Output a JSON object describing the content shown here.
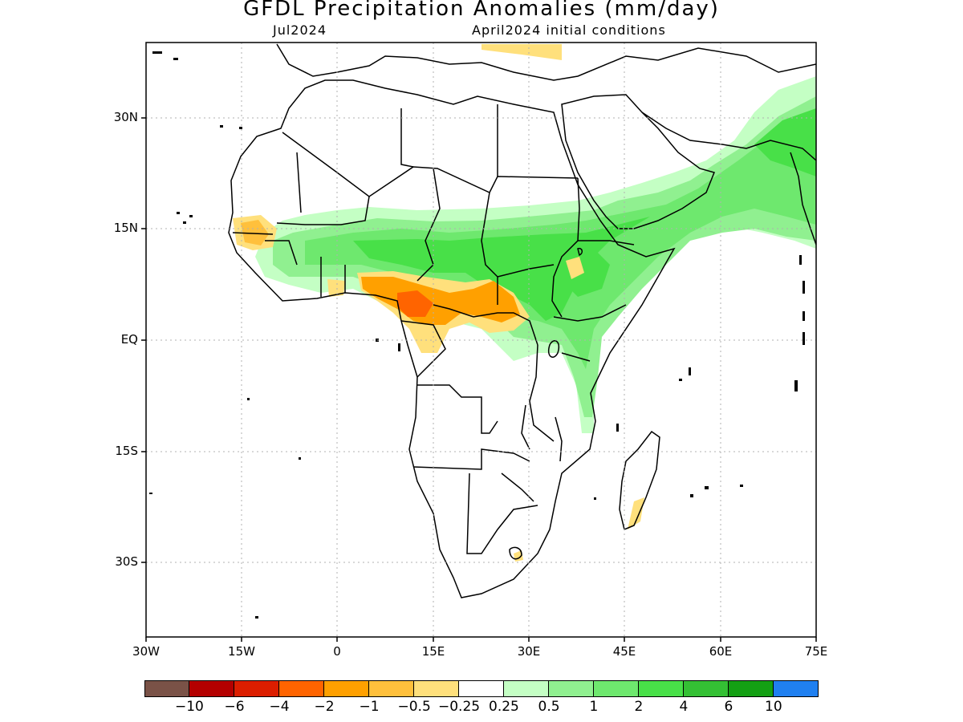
{
  "title": "GFDL Precipitation Anomalies (mm/day)",
  "subtitle_left": "Jul2024",
  "subtitle_right": "April2024 initial conditions",
  "map": {
    "lon_range": [
      -30,
      75
    ],
    "lat_range": [
      -40,
      40
    ],
    "lat_ticks": [
      "30N",
      "15N",
      "EQ",
      "15S",
      "30S"
    ],
    "lon_ticks": [
      "30W",
      "15W",
      "0",
      "15E",
      "30E",
      "45E",
      "60E",
      "75E"
    ],
    "grid": true
  },
  "colorbar": {
    "colors": [
      "#7a5247",
      "#b40000",
      "#dc1e00",
      "#ff6400",
      "#ffa000",
      "#ffc03c",
      "#ffe07c",
      "#ffffff",
      "#c4ffc4",
      "#90f090",
      "#6ee86e",
      "#48e048",
      "#34c034",
      "#14a014",
      "#2080f0"
    ],
    "labels": [
      "-10",
      "-6",
      "-4",
      "-2",
      "-1",
      "-0.5",
      "-0.25",
      "0.25",
      "0.5",
      "1",
      "2",
      "4",
      "6",
      "10"
    ]
  }
}
